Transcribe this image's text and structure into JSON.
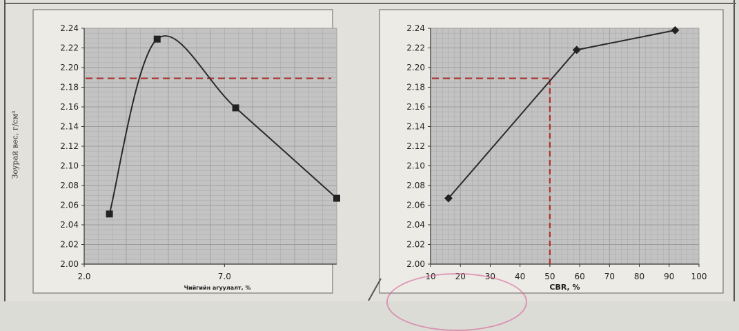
{
  "y_axis_title": "Зоурай вес, г/см³",
  "colors": {
    "line": "#2a2a2a",
    "marker": "#222222",
    "reference": "#b0302c",
    "grid": "#9c9c9c",
    "plot_bg": "#c3c3c3",
    "stamp": "#d65a96"
  },
  "chart_data": [
    {
      "type": "line",
      "xlabel": "Чийгийн агуулалт, %",
      "ylabel": "",
      "xlim": [
        2.0,
        11.0
      ],
      "ylim": [
        2.0,
        2.24
      ],
      "x_ticks": [
        "2.0",
        "7.0"
      ],
      "x_tick_values": [
        2.0,
        7.0
      ],
      "y_ticks": [
        "2.00",
        "2.02",
        "2.04",
        "2.06",
        "2.08",
        "2.10",
        "2.12",
        "2.14",
        "2.16",
        "2.18",
        "2.20",
        "2.22",
        "2.24"
      ],
      "y_tick_values": [
        2.0,
        2.02,
        2.04,
        2.06,
        2.08,
        2.1,
        2.12,
        2.14,
        2.16,
        2.18,
        2.2,
        2.22,
        2.24
      ],
      "grid": true,
      "smooth": true,
      "marker": "square",
      "x": [
        2.9,
        4.6,
        7.4,
        11.0
      ],
      "y": [
        2.051,
        2.229,
        2.159,
        2.067
      ],
      "reference_lines": [
        {
          "axis": "y",
          "value": 2.189
        }
      ]
    },
    {
      "type": "line",
      "xlabel": "СВR, %",
      "ylabel": "",
      "xlim": [
        10,
        100
      ],
      "ylim": [
        2.0,
        2.24
      ],
      "x_ticks": [
        "10",
        "20",
        "30",
        "40",
        "50",
        "60",
        "70",
        "80",
        "90",
        "100"
      ],
      "x_tick_values": [
        10,
        20,
        30,
        40,
        50,
        60,
        70,
        80,
        90,
        100
      ],
      "y_ticks": [
        "2.00",
        "2.02",
        "2.04",
        "2.06",
        "2.08",
        "2.10",
        "2.12",
        "2.14",
        "2.16",
        "2.18",
        "2.20",
        "2.22",
        "2.24"
      ],
      "y_tick_values": [
        2.0,
        2.02,
        2.04,
        2.06,
        2.08,
        2.1,
        2.12,
        2.14,
        2.16,
        2.18,
        2.2,
        2.22,
        2.24
      ],
      "grid": true,
      "smooth": false,
      "marker": "diamond",
      "x": [
        16,
        59,
        92
      ],
      "y": [
        2.067,
        2.218,
        2.238
      ],
      "reference_lines": [
        {
          "axis": "y",
          "value": 2.189,
          "to_x": 50
        },
        {
          "axis": "x",
          "value": 50,
          "to_y": 2.189
        }
      ]
    }
  ]
}
